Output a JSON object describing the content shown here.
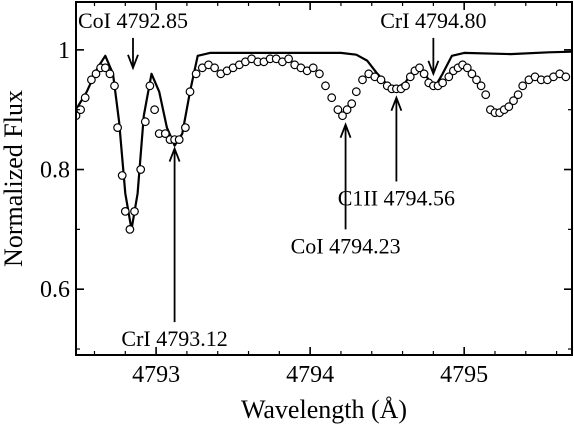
{
  "chart_data": {
    "type": "line",
    "xlabel": "Wavelength (Å)",
    "ylabel": "Normalized Flux",
    "xlim": [
      4792.48,
      4795.7
    ],
    "ylim": [
      0.49,
      1.08
    ],
    "xticks": [
      4793,
      4794,
      4795
    ],
    "yticks": [
      0.6,
      0.8,
      1.0
    ],
    "xtick_labels": [
      "4793",
      "4794",
      "4795"
    ],
    "ytick_labels": [
      "0.6",
      "0.8",
      "1"
    ],
    "grid": false,
    "legend": "none",
    "series": [
      {
        "style": "line",
        "color": "#000000",
        "points": [
          [
            4792.48,
            0.9
          ],
          [
            4792.55,
            0.93
          ],
          [
            4792.62,
            0.97
          ],
          [
            4792.67,
            0.99
          ],
          [
            4792.72,
            0.96
          ],
          [
            4792.76,
            0.88
          ],
          [
            4792.8,
            0.76
          ],
          [
            4792.84,
            0.7
          ],
          [
            4792.88,
            0.76
          ],
          [
            4792.92,
            0.89
          ],
          [
            4792.97,
            0.96
          ],
          [
            4793.02,
            0.93
          ],
          [
            4793.07,
            0.87
          ],
          [
            4793.12,
            0.84
          ],
          [
            4793.17,
            0.86
          ],
          [
            4793.22,
            0.93
          ],
          [
            4793.27,
            0.99
          ],
          [
            4793.35,
            0.995
          ],
          [
            4793.6,
            0.995
          ],
          [
            4793.9,
            0.995
          ],
          [
            4794.2,
            0.995
          ],
          [
            4794.3,
            0.992
          ],
          [
            4794.37,
            0.982
          ],
          [
            4794.43,
            0.962
          ],
          [
            4794.5,
            0.942
          ],
          [
            4794.56,
            0.936
          ],
          [
            4794.62,
            0.946
          ],
          [
            4794.67,
            0.966
          ],
          [
            4794.72,
            0.97
          ],
          [
            4794.77,
            0.95
          ],
          [
            4794.81,
            0.938
          ],
          [
            4794.86,
            0.96
          ],
          [
            4794.92,
            0.99
          ],
          [
            4795.0,
            0.995
          ],
          [
            4795.3,
            0.993
          ],
          [
            4795.55,
            0.996
          ],
          [
            4795.7,
            0.997
          ]
        ]
      },
      {
        "style": "open-circles",
        "color": "#000000",
        "points": [
          [
            4792.48,
            0.89
          ],
          [
            4792.51,
            0.9
          ],
          [
            4792.54,
            0.92
          ],
          [
            4792.58,
            0.95
          ],
          [
            4792.61,
            0.96
          ],
          [
            4792.64,
            0.97
          ],
          [
            4792.67,
            0.97
          ],
          [
            4792.7,
            0.96
          ],
          [
            4792.73,
            0.94
          ],
          [
            4792.75,
            0.87
          ],
          [
            4792.78,
            0.79
          ],
          [
            4792.8,
            0.73
          ],
          [
            4792.83,
            0.7
          ],
          [
            4792.86,
            0.73
          ],
          [
            4792.9,
            0.8
          ],
          [
            4792.93,
            0.88
          ],
          [
            4792.96,
            0.94
          ],
          [
            4792.99,
            0.9
          ],
          [
            4793.02,
            0.86
          ],
          [
            4793.06,
            0.86
          ],
          [
            4793.09,
            0.85
          ],
          [
            4793.12,
            0.85
          ],
          [
            4793.15,
            0.85
          ],
          [
            4793.19,
            0.87
          ],
          [
            4793.22,
            0.93
          ],
          [
            4793.26,
            0.96
          ],
          [
            4793.3,
            0.97
          ],
          [
            4793.34,
            0.975
          ],
          [
            4793.38,
            0.97
          ],
          [
            4793.42,
            0.96
          ],
          [
            4793.46,
            0.965
          ],
          [
            4793.5,
            0.97
          ],
          [
            4793.54,
            0.975
          ],
          [
            4793.58,
            0.98
          ],
          [
            4793.62,
            0.985
          ],
          [
            4793.66,
            0.98
          ],
          [
            4793.7,
            0.98
          ],
          [
            4793.74,
            0.985
          ],
          [
            4793.78,
            0.985
          ],
          [
            4793.82,
            0.98
          ],
          [
            4793.86,
            0.985
          ],
          [
            4793.9,
            0.975
          ],
          [
            4793.94,
            0.97
          ],
          [
            4793.98,
            0.965
          ],
          [
            4794.02,
            0.97
          ],
          [
            4794.06,
            0.96
          ],
          [
            4794.1,
            0.94
          ],
          [
            4794.14,
            0.92
          ],
          [
            4794.18,
            0.9
          ],
          [
            4794.21,
            0.89
          ],
          [
            4794.24,
            0.9
          ],
          [
            4794.27,
            0.91
          ],
          [
            4794.3,
            0.93
          ],
          [
            4794.34,
            0.95
          ],
          [
            4794.38,
            0.96
          ],
          [
            4794.42,
            0.955
          ],
          [
            4794.46,
            0.95
          ],
          [
            4794.5,
            0.94
          ],
          [
            4794.53,
            0.935
          ],
          [
            4794.56,
            0.935
          ],
          [
            4794.59,
            0.935
          ],
          [
            4794.62,
            0.94
          ],
          [
            4794.65,
            0.955
          ],
          [
            4794.68,
            0.965
          ],
          [
            4794.71,
            0.97
          ],
          [
            4794.74,
            0.96
          ],
          [
            4794.77,
            0.945
          ],
          [
            4794.8,
            0.94
          ],
          [
            4794.83,
            0.94
          ],
          [
            4794.86,
            0.945
          ],
          [
            4794.9,
            0.955
          ],
          [
            4794.93,
            0.965
          ],
          [
            4794.96,
            0.97
          ],
          [
            4794.99,
            0.975
          ],
          [
            4795.02,
            0.97
          ],
          [
            4795.05,
            0.96
          ],
          [
            4795.08,
            0.95
          ],
          [
            4795.11,
            0.94
          ],
          [
            4795.14,
            0.925
          ],
          [
            4795.17,
            0.9
          ],
          [
            4795.2,
            0.895
          ],
          [
            4795.23,
            0.895
          ],
          [
            4795.26,
            0.9
          ],
          [
            4795.29,
            0.905
          ],
          [
            4795.32,
            0.915
          ],
          [
            4795.35,
            0.925
          ],
          [
            4795.38,
            0.94
          ],
          [
            4795.42,
            0.95
          ],
          [
            4795.46,
            0.955
          ],
          [
            4795.5,
            0.95
          ],
          [
            4795.54,
            0.95
          ],
          [
            4795.58,
            0.955
          ],
          [
            4795.62,
            0.96
          ],
          [
            4795.66,
            0.955
          ]
        ]
      }
    ],
    "annotations": [
      {
        "text": "CoI 4792.85",
        "x": 4792.85,
        "y_tip": 0.97,
        "y_tail": 1.02,
        "dir": "down",
        "text_at": "above"
      },
      {
        "text": "CrI 4793.12",
        "x": 4793.12,
        "y_tip": 0.835,
        "y_tail": 0.545,
        "dir": "up",
        "text_at": "below"
      },
      {
        "text": "CoI 4794.23",
        "x": 4794.23,
        "y_tip": 0.875,
        "y_tail": 0.7,
        "dir": "up",
        "text_at": "below"
      },
      {
        "text": "C1II 4794.56",
        "x": 4794.56,
        "y_tip": 0.92,
        "y_tail": 0.78,
        "dir": "up",
        "text_at": "below"
      },
      {
        "text": "CrI 4794.80",
        "x": 4794.8,
        "y_tip": 0.96,
        "y_tail": 1.02,
        "dir": "down",
        "text_at": "above"
      }
    ]
  }
}
